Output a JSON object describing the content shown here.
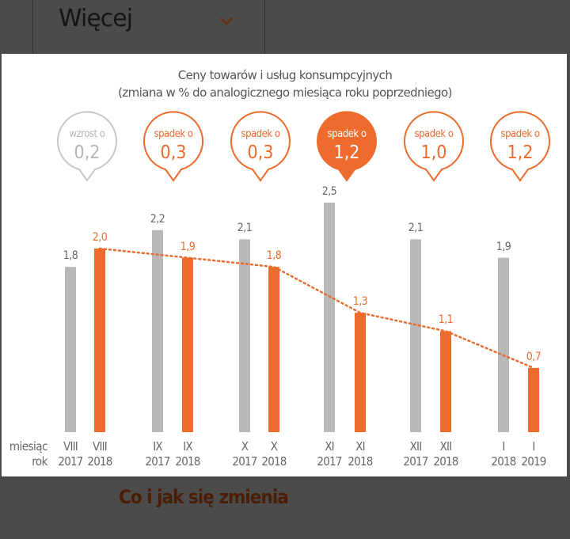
{
  "header": {
    "more_label": "Więcej"
  },
  "footer": {
    "title": "Co i jak się zmienia"
  },
  "colors": {
    "orange": "#ec6b2d",
    "gray": "#b8b8b8",
    "text": "#666666",
    "overlay": "#4b4b4b"
  },
  "chart_data": {
    "type": "bar",
    "title": "Ceny towarów i usług konsumpcyjnych",
    "subtitle": "(zmiana w % do analogicznego miesiąca roku poprzedniego)",
    "row_labels": {
      "month": "miesiąc",
      "year": "rok"
    },
    "categories": [
      "VIII",
      "IX",
      "X",
      "XI",
      "XII",
      "I"
    ],
    "series": [
      {
        "name": "previous year",
        "color": "#b8b8b8",
        "values": [
          1.8,
          2.2,
          2.1,
          2.5,
          2.1,
          1.9
        ],
        "labels": [
          "1,8",
          "2,2",
          "2,1",
          "2,5",
          "2,1",
          "1,9"
        ],
        "years": [
          "2017",
          "2017",
          "2017",
          "2017",
          "2017",
          "2018"
        ]
      },
      {
        "name": "current year",
        "color": "#ec6b2d",
        "values": [
          2.0,
          1.9,
          1.8,
          1.3,
          1.1,
          0.7
        ],
        "labels": [
          "2,0",
          "1,9",
          "1,8",
          "1,3",
          "1,1",
          "0,7"
        ],
        "years": [
          "2018",
          "2018",
          "2018",
          "2018",
          "2018",
          "2019"
        ]
      }
    ],
    "trend_line": "dotted, connects current year values",
    "bubbles": [
      {
        "label": "wzrost o",
        "value": "0,2",
        "style": "gray-outline"
      },
      {
        "label": "spadek o",
        "value": "0,3",
        "style": "orange-outline"
      },
      {
        "label": "spadek o",
        "value": "0,3",
        "style": "orange-outline"
      },
      {
        "label": "spadek o",
        "value": "1,2",
        "style": "orange-filled"
      },
      {
        "label": "spadek o",
        "value": "1,0",
        "style": "orange-outline"
      },
      {
        "label": "spadek o",
        "value": "1,2",
        "style": "orange-outline"
      }
    ],
    "ylim": [
      0,
      2.5
    ]
  }
}
